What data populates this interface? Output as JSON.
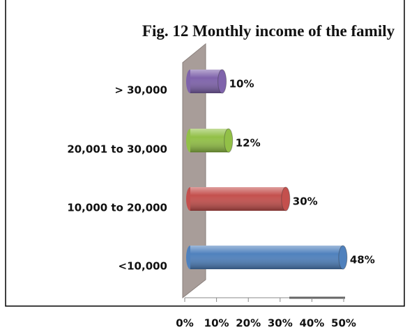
{
  "chart_data": {
    "type": "bar",
    "orientation": "horizontal",
    "title": "Fig. 12 Monthly income of the family",
    "categories": [
      "> 30,000",
      "20,001 to 30,000",
      "10,000 to 20,000",
      "<10,000"
    ],
    "values": [
      10,
      12,
      30,
      48
    ],
    "value_labels": [
      "10%",
      "12%",
      "30%",
      "48%"
    ],
    "colors": [
      "#7f63ab",
      "#92c047",
      "#c4504d",
      "#4f81bd"
    ],
    "xlim": [
      0,
      50
    ],
    "xticks": [
      {
        "value": 0,
        "label": "0%"
      },
      {
        "value": 10,
        "label": "10%"
      },
      {
        "value": 20,
        "label": "20%"
      },
      {
        "value": 30,
        "label": "30%"
      },
      {
        "value": 40,
        "label": "40%"
      },
      {
        "value": 50,
        "label": "50%"
      }
    ]
  }
}
